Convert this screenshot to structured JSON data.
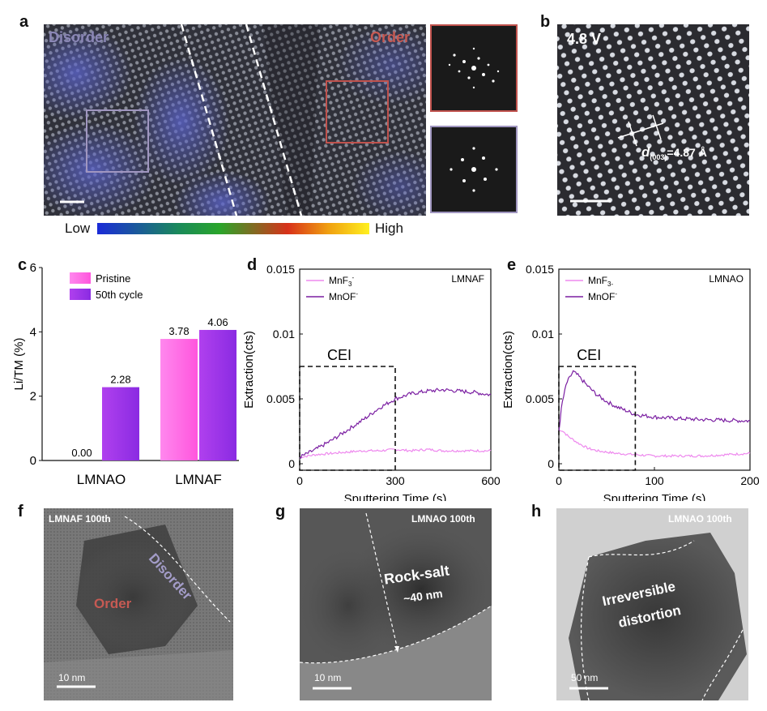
{
  "panels": {
    "a": {
      "label": "a",
      "disorder_text": "Disorder",
      "order_text": "Order",
      "colorbar": {
        "low": "Low",
        "high": "High"
      },
      "colors": {
        "order_box": "#c0524d",
        "disorder_box": "#a096c0"
      }
    },
    "b": {
      "label": "b",
      "voltage": "4.8 V",
      "d_sym": "d",
      "d_sub": "(003)",
      "d_val": "=4.87 Å"
    },
    "c": {
      "label": "c",
      "ylabel": "Li/TM (%)",
      "legend": [
        "Pristine",
        "50th cycle"
      ],
      "colors": [
        "#ff55dd",
        "#8a2be2"
      ]
    },
    "d": {
      "label": "d",
      "ylabel": "Extraction(cts)",
      "xlabel": "Sputtering Time (s)",
      "tag": "LMNAF",
      "cei": "CEI",
      "legend1_main": "MnF",
      "legend1_sub": "3",
      "legend1_sup": "-",
      "legend2_main": "MnOF",
      "legend2_sup": "-"
    },
    "e": {
      "label": "e",
      "ylabel": "Extraction(cts)",
      "xlabel": "Sputtering Time (s)",
      "tag": "LMNAO",
      "cei": "CEI",
      "legend1_main": "MnF",
      "legend1_sub": "3-",
      "legend1_sup": "",
      "legend2_main": "MnOF",
      "legend2_sup": "-"
    },
    "f": {
      "label": "f",
      "title": "LMNAF 100th",
      "order": "Order",
      "disorder": "Disorder",
      "scale": "10 nm"
    },
    "g": {
      "label": "g",
      "title": "LMNAO 100th",
      "rock": "Rock-salt",
      "thick": "~40 nm",
      "scale": "10 nm"
    },
    "h": {
      "label": "h",
      "title": "LMNAO 100th",
      "irr1": "Irreversible",
      "irr2": "distortion",
      "scale": "50 nm"
    }
  },
  "chart_data": [
    {
      "type": "bar",
      "panel": "c",
      "categories": [
        "LMNAO",
        "LMNAF"
      ],
      "series": [
        {
          "name": "Pristine",
          "values": [
            0.0,
            3.78
          ]
        },
        {
          "name": "50th cycle",
          "values": [
            2.28,
            4.06
          ]
        }
      ],
      "data_labels": [
        [
          "0.00",
          "3.78"
        ],
        [
          "2.28",
          "4.06"
        ]
      ],
      "ylabel": "Li/TM (%)",
      "ylim": [
        0,
        6
      ],
      "yticks": [
        0,
        2,
        4,
        6
      ],
      "legend": "top-left"
    },
    {
      "type": "line",
      "panel": "d",
      "xlabel": "Sputtering Time (s)",
      "ylabel": "Extraction(cts)",
      "xlim": [
        0,
        600
      ],
      "ylim": [
        -0.0005,
        0.015
      ],
      "xticks": [
        0,
        300,
        600
      ],
      "yticks": [
        0,
        0.005,
        0.01,
        0.015
      ],
      "ytick_labels": [
        "0",
        "0.005",
        "0.01",
        "0.015"
      ],
      "series": [
        {
          "name": "MnF3-",
          "color": "#ee88ee",
          "x": [
            0,
            50,
            100,
            150,
            200,
            250,
            300,
            350,
            400,
            450,
            500,
            550,
            600
          ],
          "y": [
            0.0005,
            0.0007,
            0.0008,
            0.0009,
            0.001,
            0.001,
            0.0011,
            0.001,
            0.0011,
            0.001,
            0.001,
            0.001,
            0.001
          ]
        },
        {
          "name": "MnOF-",
          "color": "#7b1fa2",
          "x": [
            0,
            25,
            50,
            100,
            150,
            200,
            250,
            300,
            350,
            400,
            450,
            500,
            550,
            600
          ],
          "y": [
            0.0005,
            0.0008,
            0.0011,
            0.0018,
            0.0026,
            0.0034,
            0.0043,
            0.005,
            0.0054,
            0.0056,
            0.0057,
            0.0056,
            0.0055,
            0.0053
          ]
        }
      ],
      "annotation": "LMNAF",
      "box": {
        "label": "CEI",
        "x": [
          0,
          300
        ],
        "y": [
          -0.0005,
          0.0075
        ]
      }
    },
    {
      "type": "line",
      "panel": "e",
      "xlabel": "Sputtering Time (s)",
      "ylabel": "Extraction(cts)",
      "xlim": [
        0,
        200
      ],
      "ylim": [
        -0.0005,
        0.015
      ],
      "xticks": [
        0,
        100,
        200
      ],
      "yticks": [
        0,
        0.005,
        0.01,
        0.015
      ],
      "ytick_labels": [
        "0",
        "0.005",
        "0.01",
        "0.015"
      ],
      "series": [
        {
          "name": "MnF3-",
          "color": "#ee88ee",
          "x": [
            0,
            3,
            10,
            20,
            30,
            40,
            50,
            60,
            80,
            100,
            120,
            150,
            200
          ],
          "y": [
            0.0025,
            0.0026,
            0.0021,
            0.0016,
            0.0012,
            0.001,
            0.0009,
            0.0008,
            0.0007,
            0.0006,
            0.0006,
            0.0006,
            0.0008
          ]
        },
        {
          "name": "MnOF-",
          "color": "#7b1fa2",
          "x": [
            0,
            3,
            8,
            15,
            20,
            30,
            40,
            50,
            60,
            70,
            80,
            100,
            120,
            150,
            200
          ],
          "y": [
            0.0025,
            0.0045,
            0.0062,
            0.0071,
            0.0068,
            0.006,
            0.0053,
            0.0048,
            0.0044,
            0.0041,
            0.0038,
            0.0036,
            0.0035,
            0.0034,
            0.0033
          ]
        }
      ],
      "annotation": "LMNAO",
      "box": {
        "label": "CEI",
        "x": [
          0,
          80
        ],
        "y": [
          -0.0005,
          0.0075
        ]
      }
    }
  ]
}
